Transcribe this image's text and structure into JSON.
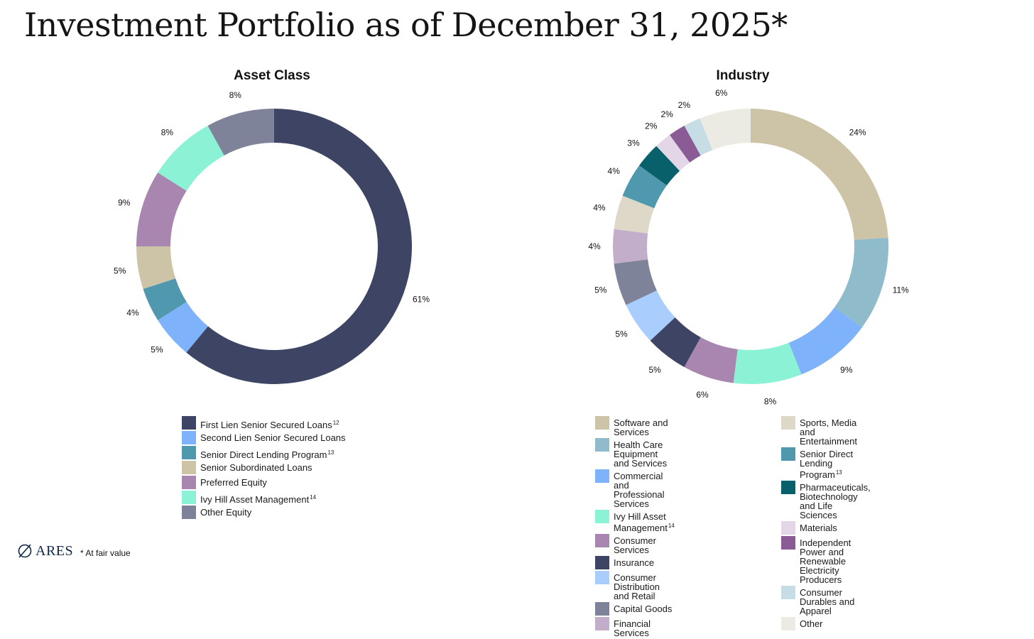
{
  "page": {
    "title": "Investment Portfolio as of December 31, 2025*",
    "footnote": "* At fair value",
    "logo_text": "ARES"
  },
  "chart_data": [
    {
      "type": "pie",
      "variant": "donut",
      "title": "Asset Class",
      "start": "top, clockwise",
      "slices": [
        {
          "label": "First Lien Senior Secured Loans",
          "sup": "12",
          "value": 61,
          "display": "61%",
          "color": "#3e4564"
        },
        {
          "label": "Second Lien Senior Secured Loans",
          "sup": "",
          "value": 5,
          "display": "5%",
          "color": "#7eb2fb"
        },
        {
          "label": "Senior Direct Lending Program",
          "sup": "13",
          "value": 4,
          "display": "4%",
          "color": "#4f98ad"
        },
        {
          "label": "Senior Subordinated Loans",
          "sup": "",
          "value": 5,
          "display": "5%",
          "color": "#cdc3a7"
        },
        {
          "label": "Preferred Equity",
          "sup": "",
          "value": 9,
          "display": "9%",
          "color": "#a886b0"
        },
        {
          "label": "Ivy Hill Asset Management",
          "sup": "14",
          "value": 8,
          "display": "8%",
          "color": "#8cf2d6"
        },
        {
          "label": "Other Equity",
          "sup": "",
          "value": 8,
          "display": "8%",
          "color": "#7f8399"
        }
      ]
    },
    {
      "type": "pie",
      "variant": "donut",
      "title": "Industry",
      "start": "top, clockwise",
      "slices": [
        {
          "label": "Software and Services",
          "sup": "",
          "value": 24,
          "display": "24%",
          "color": "#cdc3a7",
          "col": 1
        },
        {
          "label": "Health Care Equipment and Services",
          "sup": "",
          "value": 11,
          "display": "11%",
          "color": "#8fbbca",
          "col": 1
        },
        {
          "label": "Commercial and Professional Services",
          "sup": "",
          "value": 9,
          "display": "9%",
          "color": "#7eb2fb",
          "col": 1
        },
        {
          "label": "Ivy Hill Asset Management",
          "sup": "14",
          "value": 8,
          "display": "8%",
          "color": "#8cf2d6",
          "col": 1
        },
        {
          "label": "Consumer Services",
          "sup": "",
          "value": 6,
          "display": "6%",
          "color": "#a886b0",
          "col": 1
        },
        {
          "label": "Insurance",
          "sup": "",
          "value": 5,
          "display": "5%",
          "color": "#3e4564",
          "col": 1
        },
        {
          "label": "Consumer Distribution and Retail",
          "sup": "",
          "value": 5,
          "display": "5%",
          "color": "#a9cdfc",
          "col": 1
        },
        {
          "label": "Capital Goods",
          "sup": "",
          "value": 5,
          "display": "5%",
          "color": "#7f8399",
          "col": 1
        },
        {
          "label": "Financial Services",
          "sup": "",
          "value": 4,
          "display": "4%",
          "color": "#c2aecb",
          "col": 1
        },
        {
          "label": "Sports, Media and Entertainment",
          "sup": "",
          "value": 4,
          "display": "4%",
          "color": "#ddd8c7",
          "col": 2
        },
        {
          "label": "Senior Direct Lending Program",
          "sup": "13",
          "value": 4,
          "display": "4%",
          "color": "#4f98ad",
          "col": 2
        },
        {
          "label": "Pharmaceuticals, Biotechnology and Life Sciences",
          "sup": "",
          "value": 3,
          "display": "3%",
          "color": "#08606a",
          "col": 2
        },
        {
          "label": "Materials",
          "sup": "",
          "value": 2,
          "display": "2%",
          "color": "#e3d6e6",
          "col": 2
        },
        {
          "label": "Independent Power and Renewable Electricity Producers",
          "sup": "",
          "value": 2,
          "display": "2%",
          "color": "#8a5b94",
          "col": 2
        },
        {
          "label": "Consumer Durables and Apparel",
          "sup": "",
          "value": 2,
          "display": "2%",
          "color": "#c6dde6",
          "col": 2
        },
        {
          "label": "Other",
          "sup": "",
          "value": 6,
          "display": "6%",
          "color": "#ebebe3",
          "col": 2
        }
      ]
    }
  ]
}
